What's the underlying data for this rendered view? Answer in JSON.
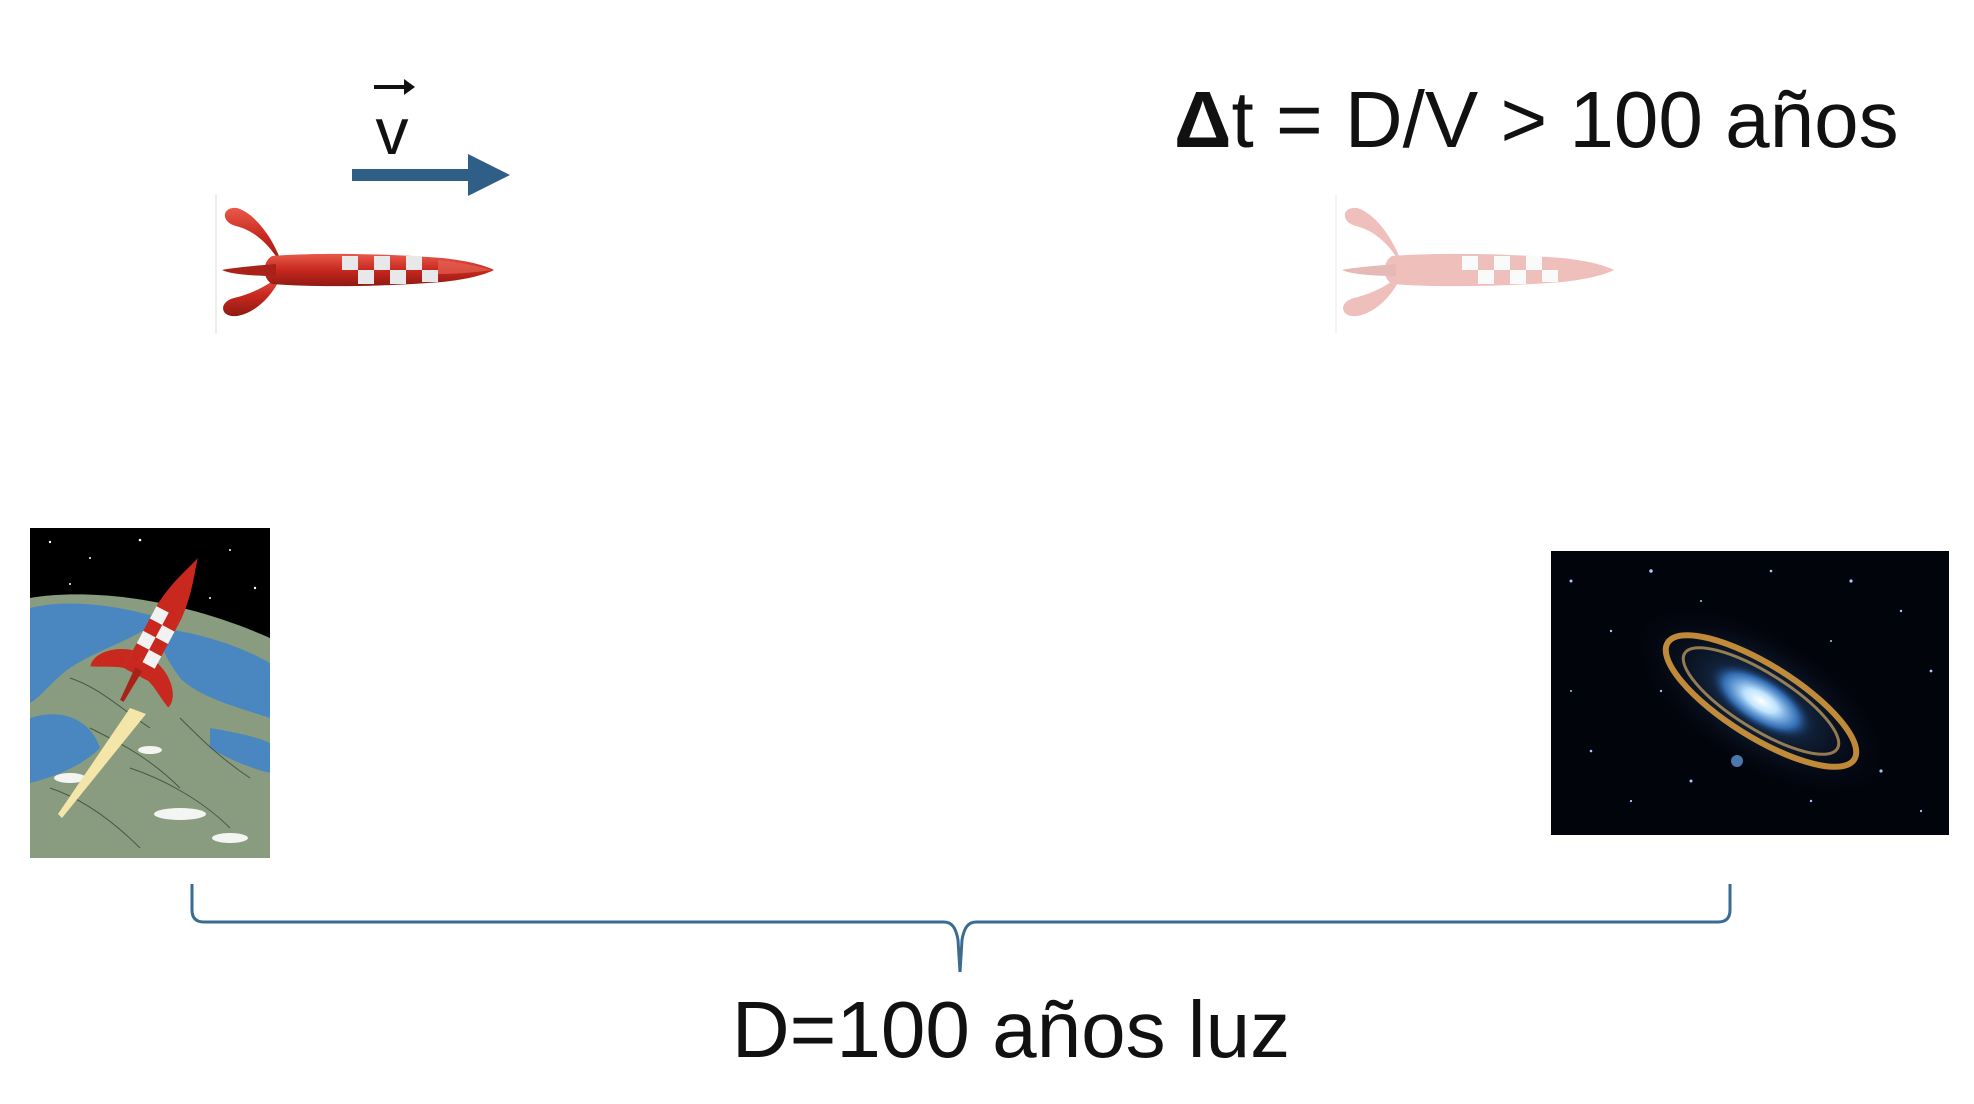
{
  "velocity": {
    "symbol": "v"
  },
  "formula": {
    "delta": "Δ",
    "rest": "t = D/V > 100 años"
  },
  "distance": {
    "label": "D=100 años luz"
  },
  "colors": {
    "arrow": "#2f5f86",
    "brace": "#3a6b92",
    "rocket_red": "#c8281e",
    "rocket_checker_light": "#e8e8ea",
    "earth_ocean": "#4a86c0",
    "earth_land": "#8a9c80",
    "space": "#000000"
  },
  "icons": {
    "moving_rocket": "rocket-icon",
    "ghost_rocket": "rocket-icon-faded",
    "origin": "earth-launch-image",
    "destination": "galaxy-image"
  }
}
